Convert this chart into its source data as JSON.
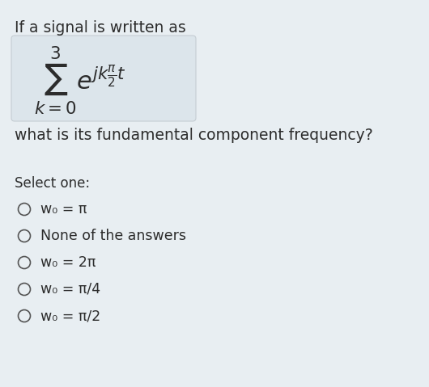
{
  "background_color": "#e8eef2",
  "box_color": "#dce5eb",
  "box_edge_color": "#c5cdd3",
  "text_color": "#2c2c2c",
  "circle_color": "#555555",
  "title_text": "If a signal is written as",
  "question_text": "what is its fundamental component frequency?",
  "select_label": "Select one:",
  "options": [
    "w₀ = π",
    "None of the answers",
    "w₀ = 2π",
    "w₀ = π/4",
    "w₀ = π/2"
  ],
  "fig_width": 5.3,
  "fig_height": 4.79,
  "dpi": 100
}
